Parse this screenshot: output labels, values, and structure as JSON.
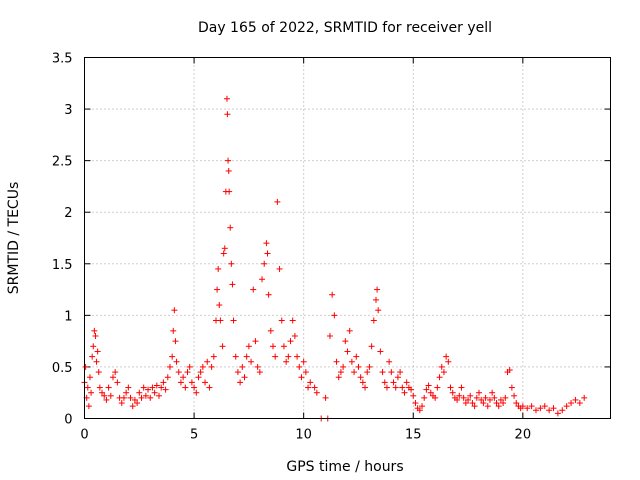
{
  "chart_data": {
    "type": "scatter",
    "title": "Day 165 of 2022, SRMTID for receiver yell",
    "xlabel": "GPS time / hours",
    "ylabel": "SRMTID / TECUs",
    "xlim": [
      0,
      24
    ],
    "ylim": [
      0,
      3.5
    ],
    "x_ticks": [
      0,
      5,
      10,
      15,
      20
    ],
    "y_ticks": [
      0,
      0.5,
      1,
      1.5,
      2,
      2.5,
      3,
      3.5
    ],
    "x_tick_labels": [
      "0",
      "5",
      "10",
      "15",
      "20"
    ],
    "y_tick_labels": [
      "0",
      "0.5",
      "1",
      "1.5",
      "2",
      "2.5",
      "3",
      "3.5"
    ],
    "grid": true,
    "marker": "+",
    "color": "#ff0000",
    "series": [
      {
        "name": "SRMTID",
        "points": [
          [
            0.0,
            0.35
          ],
          [
            0.05,
            0.5
          ],
          [
            0.1,
            0.2
          ],
          [
            0.15,
            0.3
          ],
          [
            0.2,
            0.12
          ],
          [
            0.25,
            0.4
          ],
          [
            0.3,
            0.25
          ],
          [
            0.35,
            0.6
          ],
          [
            0.4,
            0.7
          ],
          [
            0.45,
            0.85
          ],
          [
            0.5,
            0.8
          ],
          [
            0.55,
            0.55
          ],
          [
            0.6,
            0.65
          ],
          [
            0.65,
            0.45
          ],
          [
            0.7,
            0.3
          ],
          [
            0.8,
            0.25
          ],
          [
            0.9,
            0.22
          ],
          [
            1.0,
            0.18
          ],
          [
            1.1,
            0.3
          ],
          [
            1.2,
            0.22
          ],
          [
            1.3,
            0.4
          ],
          [
            1.4,
            0.45
          ],
          [
            1.5,
            0.35
          ],
          [
            1.6,
            0.2
          ],
          [
            1.7,
            0.15
          ],
          [
            1.8,
            0.2
          ],
          [
            1.9,
            0.25
          ],
          [
            2.0,
            0.3
          ],
          [
            2.1,
            0.2
          ],
          [
            2.2,
            0.12
          ],
          [
            2.3,
            0.18
          ],
          [
            2.4,
            0.15
          ],
          [
            2.5,
            0.25
          ],
          [
            2.6,
            0.2
          ],
          [
            2.7,
            0.3
          ],
          [
            2.8,
            0.22
          ],
          [
            2.9,
            0.28
          ],
          [
            3.0,
            0.2
          ],
          [
            3.1,
            0.3
          ],
          [
            3.2,
            0.25
          ],
          [
            3.3,
            0.32
          ],
          [
            3.4,
            0.22
          ],
          [
            3.5,
            0.3
          ],
          [
            3.6,
            0.35
          ],
          [
            3.7,
            0.28
          ],
          [
            3.8,
            0.4
          ],
          [
            3.9,
            0.5
          ],
          [
            4.0,
            0.6
          ],
          [
            4.05,
            0.85
          ],
          [
            4.1,
            1.05
          ],
          [
            4.15,
            0.75
          ],
          [
            4.2,
            0.55
          ],
          [
            4.3,
            0.45
          ],
          [
            4.4,
            0.35
          ],
          [
            4.5,
            0.4
          ],
          [
            4.6,
            0.3
          ],
          [
            4.7,
            0.45
          ],
          [
            4.8,
            0.5
          ],
          [
            4.9,
            0.35
          ],
          [
            5.0,
            0.3
          ],
          [
            5.1,
            0.25
          ],
          [
            5.2,
            0.4
          ],
          [
            5.3,
            0.45
          ],
          [
            5.4,
            0.5
          ],
          [
            5.5,
            0.35
          ],
          [
            5.6,
            0.55
          ],
          [
            5.7,
            0.3
          ],
          [
            5.8,
            0.5
          ],
          [
            5.9,
            0.6
          ],
          [
            6.0,
            0.95
          ],
          [
            6.05,
            1.25
          ],
          [
            6.1,
            1.45
          ],
          [
            6.15,
            1.1
          ],
          [
            6.2,
            0.95
          ],
          [
            6.3,
            0.7
          ],
          [
            6.35,
            1.6
          ],
          [
            6.4,
            1.65
          ],
          [
            6.45,
            2.2
          ],
          [
            6.5,
            3.1
          ],
          [
            6.52,
            2.95
          ],
          [
            6.55,
            2.5
          ],
          [
            6.58,
            2.4
          ],
          [
            6.6,
            2.2
          ],
          [
            6.65,
            1.85
          ],
          [
            6.7,
            1.5
          ],
          [
            6.75,
            1.3
          ],
          [
            6.8,
            0.95
          ],
          [
            6.9,
            0.6
          ],
          [
            7.0,
            0.45
          ],
          [
            7.1,
            0.35
          ],
          [
            7.2,
            0.5
          ],
          [
            7.3,
            0.4
          ],
          [
            7.4,
            0.6
          ],
          [
            7.5,
            0.7
          ],
          [
            7.6,
            0.55
          ],
          [
            7.7,
            1.25
          ],
          [
            7.8,
            0.75
          ],
          [
            7.9,
            0.5
          ],
          [
            8.0,
            0.45
          ],
          [
            8.1,
            1.35
          ],
          [
            8.2,
            1.5
          ],
          [
            8.3,
            1.7
          ],
          [
            8.35,
            1.6
          ],
          [
            8.4,
            1.2
          ],
          [
            8.5,
            0.85
          ],
          [
            8.6,
            0.7
          ],
          [
            8.7,
            0.6
          ],
          [
            8.8,
            2.1
          ],
          [
            8.9,
            1.45
          ],
          [
            9.0,
            0.95
          ],
          [
            9.1,
            0.7
          ],
          [
            9.2,
            0.55
          ],
          [
            9.3,
            0.6
          ],
          [
            9.4,
            0.75
          ],
          [
            9.5,
            0.95
          ],
          [
            9.6,
            0.8
          ],
          [
            9.7,
            0.6
          ],
          [
            9.8,
            0.5
          ],
          [
            9.9,
            0.4
          ],
          [
            10.0,
            0.55
          ],
          [
            10.1,
            0.45
          ],
          [
            10.2,
            0.3
          ],
          [
            10.3,
            0.35
          ],
          [
            10.5,
            0.3
          ],
          [
            10.6,
            0.25
          ],
          [
            10.8,
            0.0
          ],
          [
            11.0,
            0.2
          ],
          [
            11.1,
            0.0
          ],
          [
            11.2,
            0.8
          ],
          [
            11.3,
            1.2
          ],
          [
            11.4,
            1.0
          ],
          [
            11.5,
            0.55
          ],
          [
            11.6,
            0.4
          ],
          [
            11.7,
            0.45
          ],
          [
            11.8,
            0.5
          ],
          [
            11.9,
            0.75
          ],
          [
            12.0,
            0.65
          ],
          [
            12.1,
            0.85
          ],
          [
            12.2,
            0.55
          ],
          [
            12.3,
            0.45
          ],
          [
            12.4,
            0.6
          ],
          [
            12.5,
            0.5
          ],
          [
            12.6,
            0.4
          ],
          [
            12.7,
            0.35
          ],
          [
            12.8,
            0.3
          ],
          [
            12.9,
            0.45
          ],
          [
            13.0,
            0.5
          ],
          [
            13.1,
            0.7
          ],
          [
            13.2,
            0.95
          ],
          [
            13.3,
            1.15
          ],
          [
            13.35,
            1.25
          ],
          [
            13.4,
            1.05
          ],
          [
            13.5,
            0.65
          ],
          [
            13.6,
            0.45
          ],
          [
            13.7,
            0.35
          ],
          [
            13.8,
            0.3
          ],
          [
            13.9,
            0.55
          ],
          [
            14.0,
            0.45
          ],
          [
            14.1,
            0.35
          ],
          [
            14.2,
            0.3
          ],
          [
            14.3,
            0.4
          ],
          [
            14.4,
            0.45
          ],
          [
            14.5,
            0.3
          ],
          [
            14.6,
            0.25
          ],
          [
            14.7,
            0.35
          ],
          [
            14.8,
            0.3
          ],
          [
            14.9,
            0.28
          ],
          [
            15.0,
            0.22
          ],
          [
            15.1,
            0.15
          ],
          [
            15.2,
            0.1
          ],
          [
            15.3,
            0.08
          ],
          [
            15.4,
            0.12
          ],
          [
            15.5,
            0.2
          ],
          [
            15.6,
            0.28
          ],
          [
            15.7,
            0.32
          ],
          [
            15.8,
            0.25
          ],
          [
            15.9,
            0.22
          ],
          [
            16.0,
            0.2
          ],
          [
            16.1,
            0.3
          ],
          [
            16.2,
            0.4
          ],
          [
            16.3,
            0.5
          ],
          [
            16.4,
            0.45
          ],
          [
            16.5,
            0.6
          ],
          [
            16.6,
            0.55
          ],
          [
            16.7,
            0.3
          ],
          [
            16.8,
            0.25
          ],
          [
            16.9,
            0.2
          ],
          [
            17.0,
            0.18
          ],
          [
            17.1,
            0.22
          ],
          [
            17.2,
            0.3
          ],
          [
            17.3,
            0.2
          ],
          [
            17.4,
            0.15
          ],
          [
            17.5,
            0.18
          ],
          [
            17.6,
            0.22
          ],
          [
            17.7,
            0.15
          ],
          [
            17.8,
            0.12
          ],
          [
            17.9,
            0.2
          ],
          [
            18.0,
            0.25
          ],
          [
            18.1,
            0.18
          ],
          [
            18.2,
            0.15
          ],
          [
            18.3,
            0.2
          ],
          [
            18.4,
            0.12
          ],
          [
            18.5,
            0.18
          ],
          [
            18.6,
            0.25
          ],
          [
            18.7,
            0.2
          ],
          [
            18.8,
            0.15
          ],
          [
            18.9,
            0.12
          ],
          [
            19.0,
            0.18
          ],
          [
            19.1,
            0.15
          ],
          [
            19.2,
            0.2
          ],
          [
            19.3,
            0.45
          ],
          [
            19.4,
            0.47
          ],
          [
            19.5,
            0.3
          ],
          [
            19.6,
            0.22
          ],
          [
            19.7,
            0.15
          ],
          [
            19.8,
            0.12
          ],
          [
            19.9,
            0.1
          ],
          [
            20.0,
            0.12
          ],
          [
            20.2,
            0.1
          ],
          [
            20.4,
            0.12
          ],
          [
            20.6,
            0.08
          ],
          [
            20.8,
            0.1
          ],
          [
            21.0,
            0.12
          ],
          [
            21.2,
            0.08
          ],
          [
            21.4,
            0.1
          ],
          [
            21.6,
            0.05
          ],
          [
            21.8,
            0.08
          ],
          [
            22.0,
            0.12
          ],
          [
            22.2,
            0.15
          ],
          [
            22.4,
            0.18
          ],
          [
            22.6,
            0.15
          ],
          [
            22.8,
            0.2
          ]
        ]
      }
    ]
  }
}
